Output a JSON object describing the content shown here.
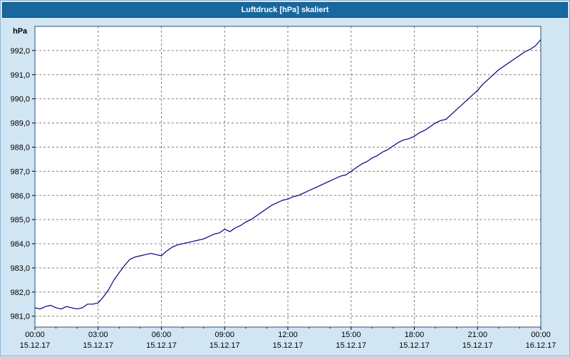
{
  "window": {
    "title": "Luftdruck [hPa] skaliert"
  },
  "colors": {
    "background": "#d2e5f3",
    "titlebar": "#17689f",
    "titlebar_text": "#ffffff",
    "plot_background": "#ffffff",
    "grid": "#808080",
    "frame": "#2f4f6f",
    "line": "#000080",
    "tick": "#000000"
  },
  "chart_data": {
    "type": "line",
    "title": "Luftdruck [hPa] skaliert",
    "series_name": "Luftdruck",
    "unit": "hPa",
    "xlabel": "",
    "ylabel": "hPa",
    "xlim_hours": [
      0,
      24
    ],
    "ylim": [
      980.55,
      993.0
    ],
    "grid": true,
    "legend": false,
    "yticks": [
      981,
      982,
      983,
      984,
      985,
      986,
      987,
      988,
      989,
      990,
      991,
      992
    ],
    "ytick_labels": [
      "981,0",
      "982,0",
      "983,0",
      "984,0",
      "985,0",
      "986,0",
      "987,0",
      "988,0",
      "989,0",
      "990,0",
      "991,0",
      "992,0"
    ],
    "xticks": [
      {
        "hour": 0,
        "time": "00:00",
        "date": "15.12.17"
      },
      {
        "hour": 3,
        "time": "03:00",
        "date": "15.12.17"
      },
      {
        "hour": 6,
        "time": "06:00",
        "date": "15.12.17"
      },
      {
        "hour": 9,
        "time": "09:00",
        "date": "15.12.17"
      },
      {
        "hour": 12,
        "time": "12:00",
        "date": "15.12.17"
      },
      {
        "hour": 15,
        "time": "15:00",
        "date": "15.12.17"
      },
      {
        "hour": 18,
        "time": "18:00",
        "date": "15.12.17"
      },
      {
        "hour": 21,
        "time": "21:00",
        "date": "15.12.17"
      },
      {
        "hour": 24,
        "time": "00:00",
        "date": "16.12.17"
      }
    ],
    "points": [
      [
        0,
        981.35
      ],
      [
        0.25,
        981.3
      ],
      [
        0.5,
        981.4
      ],
      [
        0.75,
        981.45
      ],
      [
        1,
        981.35
      ],
      [
        1.25,
        981.3
      ],
      [
        1.5,
        981.4
      ],
      [
        1.75,
        981.35
      ],
      [
        2,
        981.3
      ],
      [
        2.25,
        981.35
      ],
      [
        2.5,
        981.5
      ],
      [
        2.75,
        981.5
      ],
      [
        3,
        981.55
      ],
      [
        3.25,
        981.8
      ],
      [
        3.5,
        982.1
      ],
      [
        3.75,
        982.5
      ],
      [
        4,
        982.8
      ],
      [
        4.25,
        983.1
      ],
      [
        4.5,
        983.35
      ],
      [
        4.75,
        983.45
      ],
      [
        5,
        983.5
      ],
      [
        5.25,
        983.55
      ],
      [
        5.5,
        983.6
      ],
      [
        5.75,
        983.55
      ],
      [
        6,
        983.5
      ],
      [
        6.25,
        983.7
      ],
      [
        6.5,
        983.85
      ],
      [
        6.75,
        983.95
      ],
      [
        7,
        984
      ],
      [
        7.25,
        984.05
      ],
      [
        7.5,
        984.1
      ],
      [
        7.75,
        984.15
      ],
      [
        8,
        984.2
      ],
      [
        8.25,
        984.3
      ],
      [
        8.5,
        984.4
      ],
      [
        8.75,
        984.45
      ],
      [
        9,
        984.6
      ],
      [
        9.25,
        984.5
      ],
      [
        9.5,
        984.65
      ],
      [
        9.75,
        984.75
      ],
      [
        10,
        984.9
      ],
      [
        10.25,
        985
      ],
      [
        10.5,
        985.15
      ],
      [
        10.75,
        985.3
      ],
      [
        11,
        985.45
      ],
      [
        11.25,
        985.6
      ],
      [
        11.5,
        985.7
      ],
      [
        11.75,
        985.8
      ],
      [
        12,
        985.85
      ],
      [
        12.25,
        985.95
      ],
      [
        12.5,
        986
      ],
      [
        12.75,
        986.1
      ],
      [
        13,
        986.2
      ],
      [
        13.25,
        986.3
      ],
      [
        13.5,
        986.4
      ],
      [
        13.75,
        986.5
      ],
      [
        14,
        986.6
      ],
      [
        14.25,
        986.7
      ],
      [
        14.5,
        986.8
      ],
      [
        14.75,
        986.85
      ],
      [
        15,
        987
      ],
      [
        15.25,
        987.15
      ],
      [
        15.5,
        987.3
      ],
      [
        15.75,
        987.4
      ],
      [
        16,
        987.55
      ],
      [
        16.25,
        987.65
      ],
      [
        16.5,
        987.8
      ],
      [
        16.75,
        987.9
      ],
      [
        17,
        988.05
      ],
      [
        17.25,
        988.2
      ],
      [
        17.5,
        988.3
      ],
      [
        17.75,
        988.35
      ],
      [
        18,
        988.45
      ],
      [
        18.25,
        988.6
      ],
      [
        18.5,
        988.7
      ],
      [
        18.75,
        988.85
      ],
      [
        19,
        989
      ],
      [
        19.25,
        989.1
      ],
      [
        19.5,
        989.15
      ],
      [
        19.75,
        989.35
      ],
      [
        20,
        989.55
      ],
      [
        20.25,
        989.75
      ],
      [
        20.5,
        989.95
      ],
      [
        20.75,
        990.15
      ],
      [
        21,
        990.35
      ],
      [
        21.25,
        990.6
      ],
      [
        21.5,
        990.8
      ],
      [
        21.75,
        991
      ],
      [
        22,
        991.2
      ],
      [
        22.25,
        991.35
      ],
      [
        22.5,
        991.5
      ],
      [
        22.75,
        991.65
      ],
      [
        23,
        991.8
      ],
      [
        23.25,
        991.95
      ],
      [
        23.5,
        992.05
      ],
      [
        23.75,
        992.2
      ],
      [
        24,
        992.45
      ]
    ]
  }
}
